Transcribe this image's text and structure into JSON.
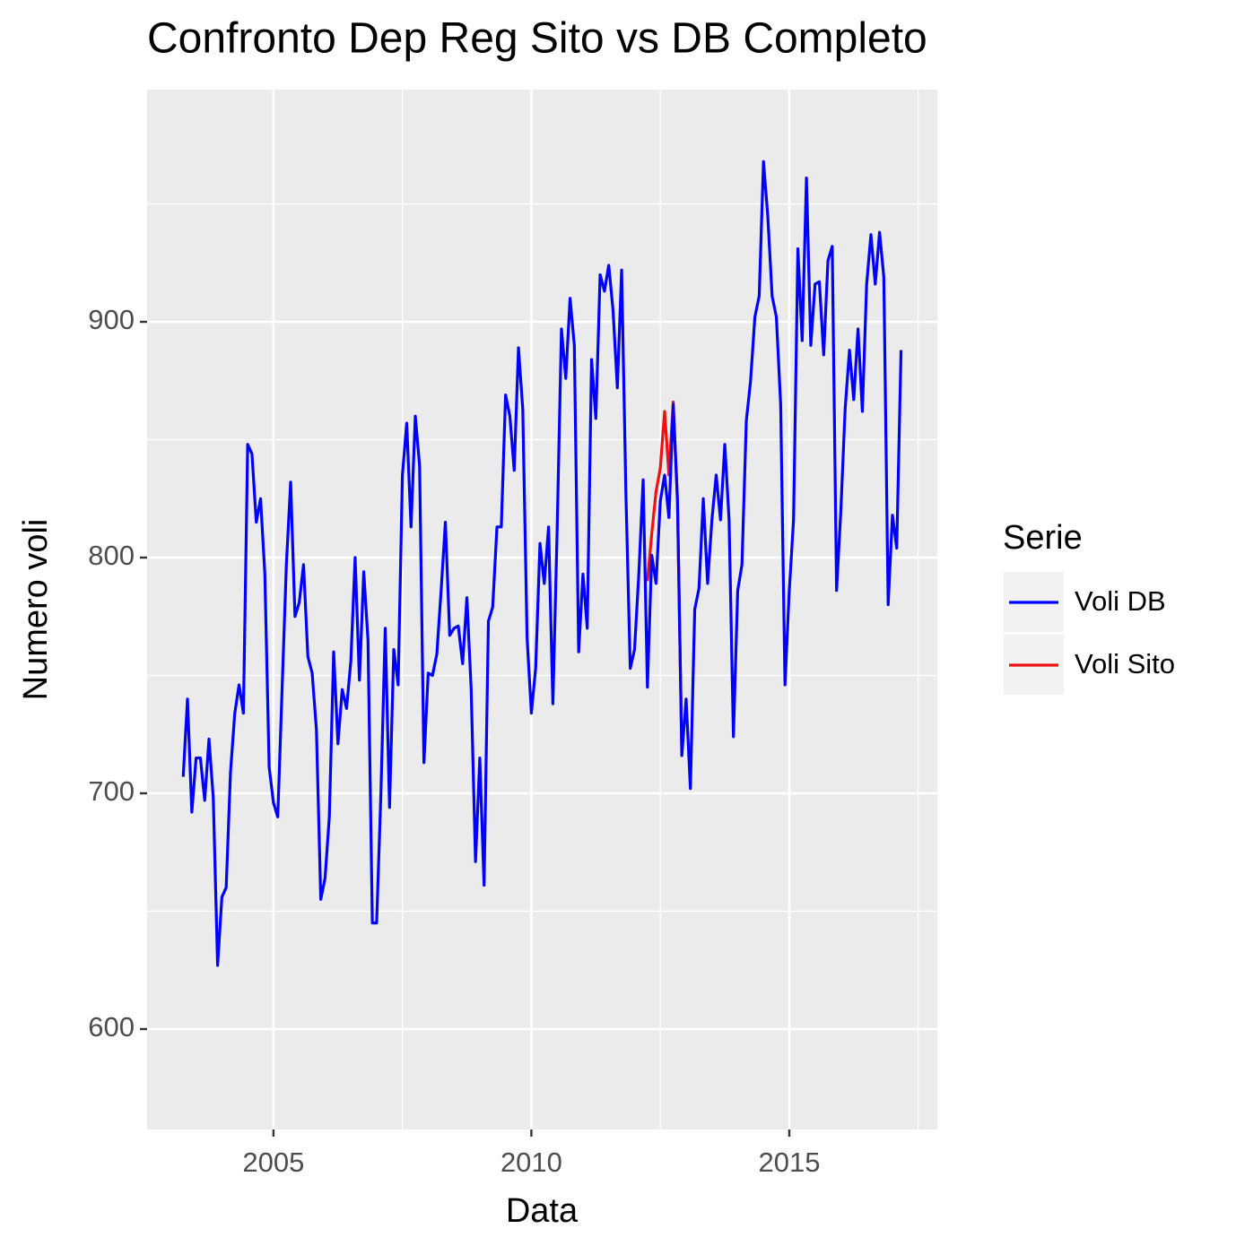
{
  "chart_data": {
    "type": "line",
    "title": "Confronto Dep Reg Sito vs DB Completo",
    "x_label": "Data",
    "y_label": "Numero voli",
    "legend_title": "Serie",
    "xlim": [
      2002.55,
      2017.87
    ],
    "ylim": [
      557.4,
      998.5
    ],
    "xticks": [
      2005,
      2010,
      2015
    ],
    "yticks": [
      600,
      700,
      800,
      900
    ],
    "x_minor_grid": [
      2007.5,
      2012.5,
      2017.5
    ],
    "y_minor_grid": [
      650,
      750,
      850,
      950
    ],
    "grid": true,
    "legend": "right",
    "series": [
      {
        "name": "Voli DB",
        "color": "#0000ff",
        "x": [
          2003.25,
          2003.333,
          2003.417,
          2003.5,
          2003.583,
          2003.667,
          2003.75,
          2003.833,
          2003.917,
          2004.0,
          2004.083,
          2004.167,
          2004.25,
          2004.333,
          2004.417,
          2004.5,
          2004.583,
          2004.667,
          2004.75,
          2004.833,
          2004.917,
          2005.0,
          2005.083,
          2005.167,
          2005.25,
          2005.333,
          2005.417,
          2005.5,
          2005.583,
          2005.667,
          2005.75,
          2005.833,
          2005.917,
          2006.0,
          2006.083,
          2006.167,
          2006.25,
          2006.333,
          2006.417,
          2006.5,
          2006.583,
          2006.667,
          2006.75,
          2006.833,
          2006.917,
          2007.0,
          2007.083,
          2007.167,
          2007.25,
          2007.333,
          2007.417,
          2007.5,
          2007.583,
          2007.667,
          2007.75,
          2007.833,
          2007.917,
          2008.0,
          2008.083,
          2008.167,
          2008.25,
          2008.333,
          2008.417,
          2008.5,
          2008.583,
          2008.667,
          2008.75,
          2008.833,
          2008.917,
          2009.0,
          2009.083,
          2009.167,
          2009.25,
          2009.333,
          2009.417,
          2009.5,
          2009.583,
          2009.667,
          2009.75,
          2009.833,
          2009.917,
          2010.0,
          2010.083,
          2010.167,
          2010.25,
          2010.333,
          2010.417,
          2010.5,
          2010.583,
          2010.667,
          2010.75,
          2010.833,
          2010.917,
          2011.0,
          2011.083,
          2011.167,
          2011.25,
          2011.333,
          2011.417,
          2011.5,
          2011.583,
          2011.667,
          2011.75,
          2011.833,
          2011.917,
          2012.0,
          2012.083,
          2012.167,
          2012.25,
          2012.333,
          2012.417,
          2012.5,
          2012.583,
          2012.667,
          2012.75,
          2012.833,
          2012.917,
          2013.0,
          2013.083,
          2013.167,
          2013.25,
          2013.333,
          2013.417,
          2013.5,
          2013.583,
          2013.667,
          2013.75,
          2013.833,
          2013.917,
          2014.0,
          2014.083,
          2014.167,
          2014.25,
          2014.333,
          2014.417,
          2014.5,
          2014.583,
          2014.667,
          2014.75,
          2014.833,
          2014.917,
          2015.0,
          2015.083,
          2015.167,
          2015.25,
          2015.333,
          2015.417,
          2015.5,
          2015.583,
          2015.667,
          2015.75,
          2015.833,
          2015.917,
          2016.0,
          2016.083,
          2016.167,
          2016.25,
          2016.333,
          2016.417,
          2016.5,
          2016.583,
          2016.667,
          2016.75,
          2016.833,
          2016.917,
          2017.0,
          2017.083,
          2017.167
        ],
        "values": [
          707,
          740,
          692,
          715,
          715,
          697,
          723,
          698,
          627,
          656,
          660,
          709,
          734,
          746,
          734,
          848,
          844,
          815,
          825,
          793,
          711,
          696,
          690,
          744,
          797,
          832,
          775,
          781,
          797,
          758,
          751,
          727,
          655,
          664,
          690,
          760,
          721,
          744,
          736,
          756,
          800,
          748,
          794,
          765,
          645,
          645,
          700,
          770,
          694,
          761,
          746,
          835,
          857,
          813,
          860,
          839,
          713,
          751,
          750,
          759,
          786,
          815,
          767,
          770,
          771,
          755,
          783,
          744,
          671,
          715,
          661,
          773,
          779,
          813,
          813,
          869,
          860,
          837,
          889,
          863,
          766,
          734,
          753,
          806,
          789,
          813,
          738,
          812,
          897,
          876,
          910,
          890,
          760,
          793,
          770,
          884,
          859,
          920,
          913,
          924,
          905,
          872,
          922,
          827,
          753,
          761,
          793,
          833,
          745,
          801,
          789,
          824,
          835,
          817,
          865,
          824,
          716,
          740,
          702,
          778,
          787,
          825,
          789,
          816,
          835,
          816,
          848,
          816,
          724,
          786,
          797,
          858,
          875,
          902,
          911,
          968,
          945,
          911,
          902,
          865,
          746,
          786,
          816,
          931,
          892,
          961,
          890,
          916,
          917,
          886,
          926,
          932,
          786,
          820,
          863,
          888,
          867,
          897,
          862,
          916,
          937,
          916,
          938,
          919,
          780,
          818,
          804,
          888
        ]
      },
      {
        "name": "Voli Sito",
        "color": "#ee1111",
        "x": [
          2012.25,
          2012.333,
          2012.417,
          2012.5,
          2012.583,
          2012.667,
          2012.75,
          2012.833,
          2012.917
        ],
        "values": [
          790,
          810,
          828,
          838,
          862,
          835,
          866,
          824,
          716
        ]
      }
    ]
  }
}
